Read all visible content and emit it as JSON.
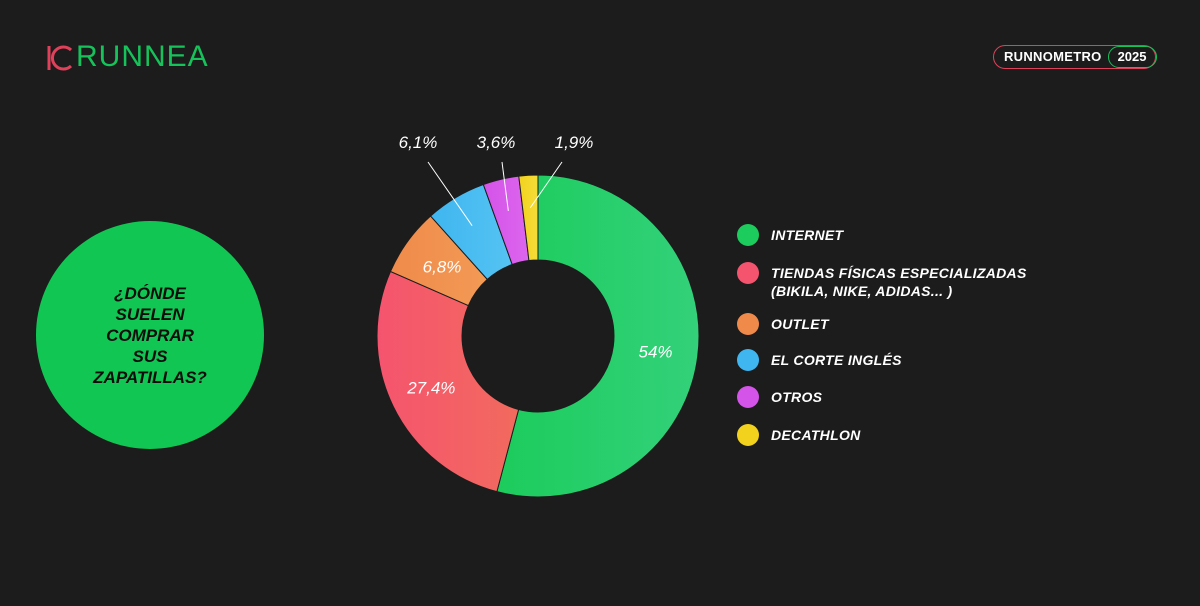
{
  "header": {
    "logo_text": "RUNNEA",
    "badge_label": "RUNNOMETRO",
    "badge_year": "2025"
  },
  "question": {
    "lines": [
      "¿DÓNDE",
      "SUELEN",
      "COMPRAR",
      "SUS",
      "ZAPATILLAS?"
    ]
  },
  "colors": {
    "background": "#1c1c1c",
    "brand_green": "#16c25a",
    "brand_red": "#e0415a"
  },
  "chart_data": {
    "type": "pie",
    "subtype": "donut",
    "categories": [
      "INTERNET",
      "TIENDAS FÍSICAS ESPECIALIZADAS",
      "OUTLET",
      "EL CORTE INGLÉS",
      "OTROS",
      "DECATHLON"
    ],
    "values": [
      54,
      27.4,
      6.8,
      6.1,
      3.6,
      1.9
    ],
    "value_labels": [
      "54%",
      "27,4%",
      "6,8%",
      "6,1%",
      "3,6%",
      "1,9%"
    ],
    "colors": [
      "#1ccc5c",
      "#f5546e",
      "#f08a4b",
      "#3fb6f0",
      "#d453e8",
      "#f2d21c"
    ],
    "legend": {
      "placement": "right",
      "items": [
        {
          "label": "INTERNET",
          "sub": ""
        },
        {
          "label": "TIENDAS FÍSICAS ESPECIALIZADAS",
          "sub": "(BIKILA, NIKE, ADIDAS... )"
        },
        {
          "label": "OUTLET",
          "sub": ""
        },
        {
          "label": "EL CORTE INGLÉS",
          "sub": ""
        },
        {
          "label": "OTROS",
          "sub": ""
        },
        {
          "label": "DECATHLON",
          "sub": ""
        }
      ]
    }
  }
}
